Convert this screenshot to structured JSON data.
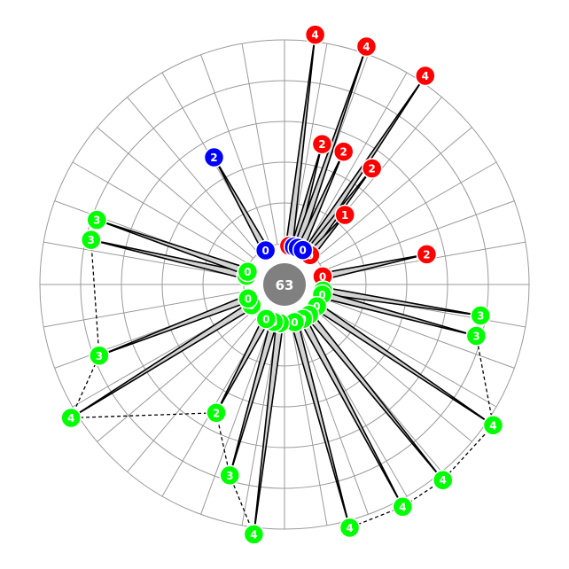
{
  "chart_data": {
    "type": "radial-stem",
    "center_value": "63",
    "ring_count": 6,
    "spoke_count": 36,
    "colors": {
      "red": "#ff0000",
      "blue": "#0000ff",
      "green": "#00ff00",
      "hub": "#808080",
      "fill": "#d3d3d3"
    },
    "items": [
      {
        "angle": 7,
        "inner": 0,
        "outer": 4,
        "color": "red"
      },
      {
        "angle": 15,
        "inner": 0,
        "outer": 2,
        "color": "red"
      },
      {
        "angle": 19,
        "inner": 0,
        "outer": 4,
        "color": "red"
      },
      {
        "angle": 24,
        "inner": 0,
        "outer": 2,
        "color": "red"
      },
      {
        "angle": 34,
        "inner": 0,
        "outer": 4,
        "color": "red"
      },
      {
        "angle": 37,
        "inner": 0,
        "outer": 2,
        "color": "red"
      },
      {
        "angle": 41,
        "inner": 0,
        "outer": 1,
        "color": "red"
      },
      {
        "angle": 78,
        "inner": 0,
        "outer": 2,
        "color": "red"
      },
      {
        "angle": 99,
        "inner": 0,
        "outer": 3,
        "color": "green"
      },
      {
        "angle": 105,
        "inner": 0,
        "outer": 3,
        "color": "green"
      },
      {
        "angle": 124,
        "inner": 0,
        "outer": 4,
        "color": "green"
      },
      {
        "angle": 141,
        "inner": 0,
        "outer": 4,
        "color": "green"
      },
      {
        "angle": 152,
        "inner": 0,
        "outer": 4,
        "color": "green"
      },
      {
        "angle": 165,
        "inner": 0,
        "outer": 4,
        "color": "green"
      },
      {
        "angle": 187,
        "inner": 0,
        "outer": 4,
        "color": "green"
      },
      {
        "angle": 196,
        "inner": 0,
        "outer": 3,
        "color": "green"
      },
      {
        "angle": 208,
        "inner": 0,
        "outer": 2,
        "color": "green"
      },
      {
        "angle": 238,
        "inner": 0,
        "outer": 4,
        "color": "green"
      },
      {
        "angle": 249,
        "inner": 0,
        "outer": 3,
        "color": "green"
      },
      {
        "angle": 283,
        "inner": 0,
        "outer": 3,
        "color": "green"
      },
      {
        "angle": 289,
        "inner": 0,
        "outer": 3,
        "color": "green"
      },
      {
        "angle": 331,
        "inner": 0,
        "outer": 2,
        "color": "blue"
      },
      {
        "angle": 14,
        "inner": 0,
        "outer": 0,
        "color": "blue"
      },
      {
        "angle": 20,
        "inner": 0,
        "outer": 0,
        "color": "blue"
      },
      {
        "angle": 28,
        "inner": 0,
        "outer": 0,
        "color": "blue"
      }
    ],
    "connector_groups": [
      [
        99,
        105,
        124,
        141,
        152,
        165
      ],
      [
        187,
        196,
        208,
        238,
        249,
        283
      ]
    ]
  }
}
